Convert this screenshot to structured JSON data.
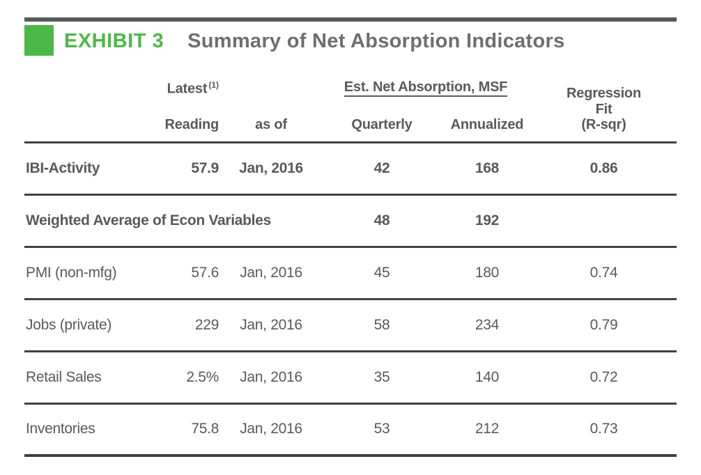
{
  "exhibit": {
    "tag": "EXHIBIT 3",
    "title": "Summary of Net Absorption Indicators"
  },
  "table": {
    "header": {
      "latest": "Latest",
      "latest_sup": "(1)",
      "reading": "Reading",
      "as_of": "as of",
      "group": "Est. Net Absorption, MSF",
      "quarterly": "Quarterly",
      "annualized": "Annualized",
      "regression_line1": "Regression",
      "regression_line2": "Fit",
      "regression_line3": "(R-sqr)"
    },
    "rows": [
      {
        "label": "IBI-Activity",
        "reading": "57.9",
        "as_of": "Jan, 2016",
        "quarterly": "42",
        "annualized": "168",
        "r_sqr": "0.86"
      },
      {
        "label": "Weighted Average of Econ Variables",
        "reading": "",
        "as_of": "",
        "quarterly": "48",
        "annualized": "192",
        "r_sqr": ""
      },
      {
        "label": "PMI (non-mfg)",
        "reading": "57.6",
        "as_of": "Jan, 2016",
        "quarterly": "45",
        "annualized": "180",
        "r_sqr": "0.74"
      },
      {
        "label": "Jobs (private)",
        "reading": "229",
        "as_of": "Jan, 2016",
        "quarterly": "58",
        "annualized": "234",
        "r_sqr": "0.79"
      },
      {
        "label": "Retail Sales",
        "reading": "2.5%",
        "as_of": "Jan, 2016",
        "quarterly": "35",
        "annualized": "140",
        "r_sqr": "0.72"
      },
      {
        "label": "Inventories",
        "reading": "75.8",
        "as_of": "Jan, 2016",
        "quarterly": "53",
        "annualized": "212",
        "r_sqr": "0.73"
      }
    ]
  },
  "colors": {
    "accent_green": "#4CB848",
    "heading_gray": "#6D6E71",
    "text_gray": "#58595B",
    "rule_dark": "#3F4041"
  }
}
